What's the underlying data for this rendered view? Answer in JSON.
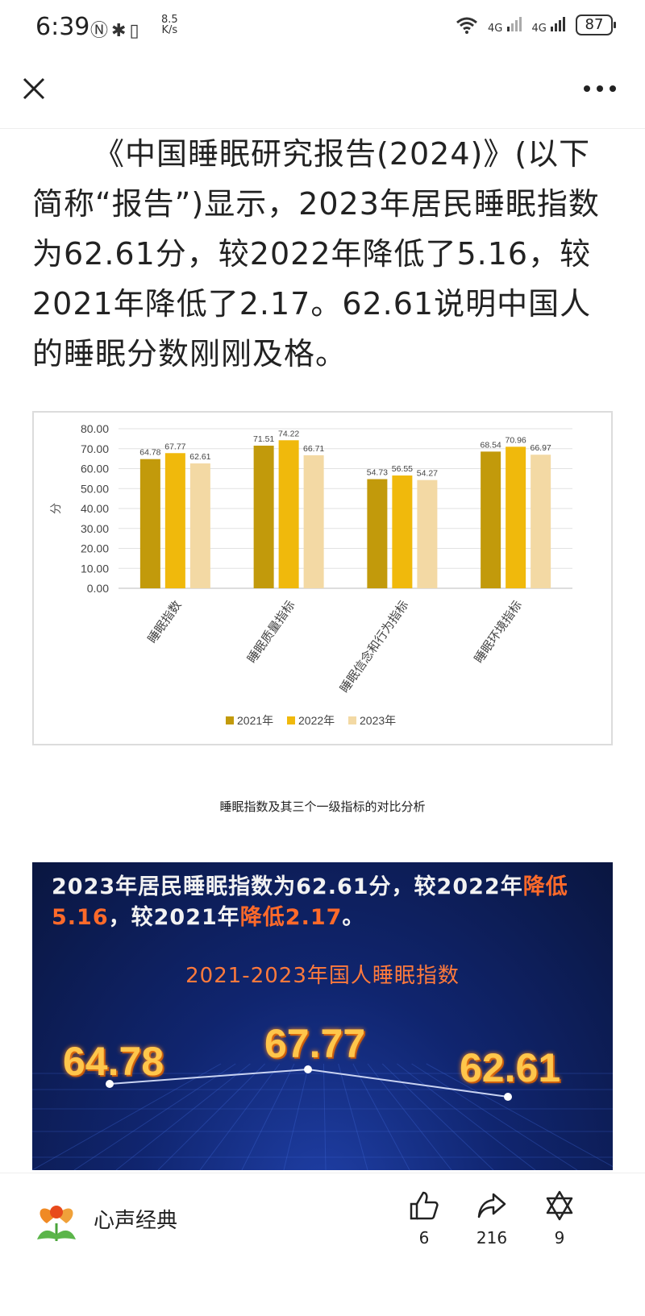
{
  "status_bar": {
    "time": "6:39",
    "speed_value": "8.5",
    "speed_unit": "K/s",
    "network_1": "4G",
    "network_2": "4G",
    "battery": "87"
  },
  "article": {
    "paragraph": "《中国睡眠研究报告(2024)》(以下简称“报告”)显示，2023年居民睡眠指数为62.61分，较2022年降低了5.16，较2021年降低了2.17。62.61说明中国人的睡眠分数刚刚及格。",
    "caption": "睡眠指数及其三个一级指标的对比分析"
  },
  "chart_data": {
    "type": "bar",
    "categories": [
      "睡眠指数",
      "睡眠质量指标",
      "睡眠信念和行为指标",
      "睡眠环境指标"
    ],
    "series": [
      {
        "name": "2021年",
        "values": [
          64.78,
          71.51,
          54.73,
          68.54
        ],
        "color": "#c29a0b"
      },
      {
        "name": "2022年",
        "values": [
          67.77,
          74.22,
          56.55,
          70.96
        ],
        "color": "#f0b90c"
      },
      {
        "name": "2023年",
        "values": [
          62.61,
          66.71,
          54.27,
          66.97
        ],
        "color": "#f3d9a4"
      }
    ],
    "ylabel": "分",
    "ylim": [
      0,
      80
    ],
    "yticks": [
      "0.00",
      "10.00",
      "20.00",
      "30.00",
      "40.00",
      "50.00",
      "60.00",
      "70.00",
      "80.00"
    ],
    "grid": true,
    "legend": "bottom"
  },
  "promo": {
    "headline_1": "2023年居民睡眠指数为62.61分，较2022年",
    "headline_2": "降低",
    "headline_3": "5.16",
    "headline_4": "，较2021年",
    "headline_5": "降低2.17",
    "headline_6": "。",
    "subtitle": "2021-2023年国人睡眠指数",
    "values": [
      "64.78",
      "67.77",
      "62.61"
    ]
  },
  "bottom_bar": {
    "account_name": "心声经典",
    "like_count": "6",
    "share_count": "216",
    "collect_count": "9"
  },
  "colors": {
    "accent_orange": "#ff6a2a",
    "promo_bg": "#10256f"
  }
}
